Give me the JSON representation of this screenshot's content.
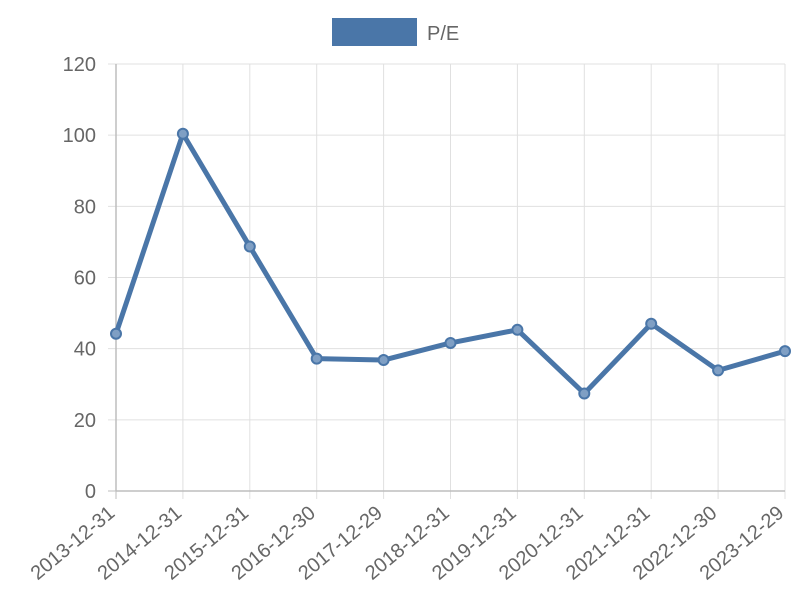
{
  "chart_data": {
    "type": "line",
    "legend": {
      "position": "top",
      "label": "P/E"
    },
    "categories": [
      "2013-12-31",
      "2014-12-31",
      "2015-12-31",
      "2016-12-30",
      "2017-12-29",
      "2018-12-31",
      "2019-12-31",
      "2020-12-31",
      "2021-12-31",
      "2022-12-30",
      "2023-12-29"
    ],
    "series": [
      {
        "name": "P/E",
        "values": [
          44.2,
          100.4,
          68.7,
          37.2,
          36.8,
          41.6,
          45.3,
          27.4,
          47.0,
          33.9,
          39.3
        ]
      }
    ],
    "ylim": [
      0,
      120
    ],
    "yticks": [
      0,
      20,
      40,
      60,
      80,
      100,
      120
    ],
    "grid": true,
    "colors": {
      "line": "#4a76a8",
      "marker_fill": "#7f9fc4",
      "grid": "#e0e0e0",
      "axis": "#bdbdbd",
      "text": "#666666"
    }
  }
}
